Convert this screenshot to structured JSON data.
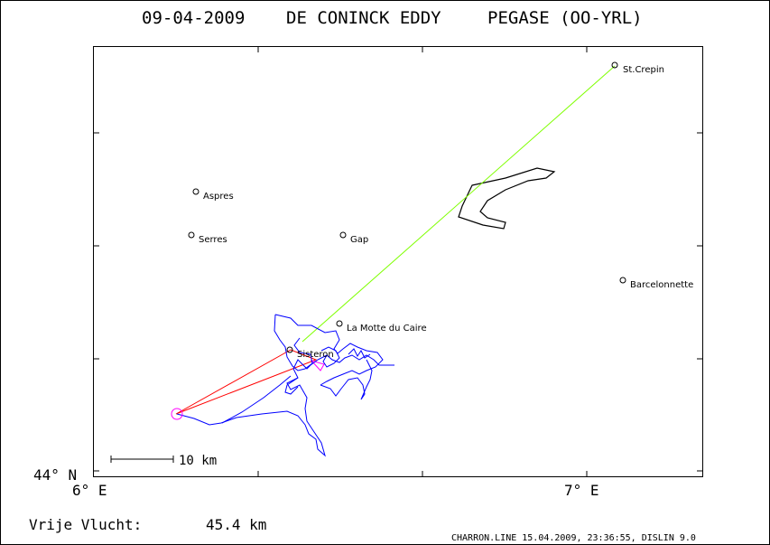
{
  "header": {
    "date": "09-04-2009",
    "pilot": "DE CONINCK EDDY",
    "glider": "PEGASE (OO-YRL)"
  },
  "axes": {
    "lat_label": "44° N",
    "lon_labels": [
      "6° E",
      "7° E"
    ]
  },
  "places": [
    {
      "name": "St.Crepin"
    },
    {
      "name": "Aspres"
    },
    {
      "name": "Serres"
    },
    {
      "name": "Gap"
    },
    {
      "name": "Barcelonnette"
    },
    {
      "name": "La Motte du Caire"
    },
    {
      "name": "Sisteron"
    }
  ],
  "scale_bar": {
    "label": "10 km"
  },
  "footer": {
    "distance_label": "Vrije Vlucht:",
    "distance_value": "45.4 km",
    "credit": "CHARRON.LINE 15.04.2009, 23:36:55, DISLIN 9.0"
  },
  "colors": {
    "track": "#0000ff",
    "triangle": "#ff0000",
    "line_to_st_crepin": "#7fff00",
    "start_marker": "#ff00ff",
    "airspace": "#000000"
  }
}
